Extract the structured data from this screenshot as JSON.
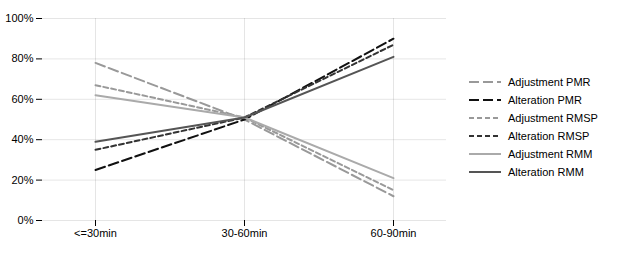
{
  "chart_data": {
    "type": "line",
    "categories": [
      "<=30min",
      "30-60min",
      "60-90min"
    ],
    "series": [
      {
        "name": "Adjustment PMR",
        "color": "#999999",
        "line_style": "long_dash",
        "values": [
          0.78,
          0.5,
          0.12
        ]
      },
      {
        "name": "Alteration PMR",
        "color": "#111111",
        "line_style": "long_dash",
        "values": [
          0.25,
          0.5,
          0.9
        ]
      },
      {
        "name": "Adjustment RMSP",
        "color": "#999999",
        "line_style": "medium_dash",
        "values": [
          0.67,
          0.51,
          0.15
        ]
      },
      {
        "name": "Alteration RMSP",
        "color": "#333333",
        "line_style": "medium_dash",
        "values": [
          0.35,
          0.51,
          0.87
        ]
      },
      {
        "name": "Adjustment RMM",
        "color": "#aaaaaa",
        "line_style": "solid",
        "values": [
          0.62,
          0.51,
          0.21
        ]
      },
      {
        "name": "Alteration RMM",
        "color": "#555555",
        "line_style": "solid",
        "values": [
          0.39,
          0.51,
          0.81
        ]
      }
    ],
    "ylim": [
      0,
      1.0
    ],
    "yticks": [
      {
        "value": 0.0,
        "label": "0%"
      },
      {
        "value": 0.2,
        "label": "20%"
      },
      {
        "value": 0.4,
        "label": "40%"
      },
      {
        "value": 0.6,
        "label": "60%"
      },
      {
        "value": 0.8,
        "label": "80%"
      },
      {
        "value": 1.0,
        "label": "100%"
      }
    ],
    "grid": true,
    "legend": "right"
  }
}
